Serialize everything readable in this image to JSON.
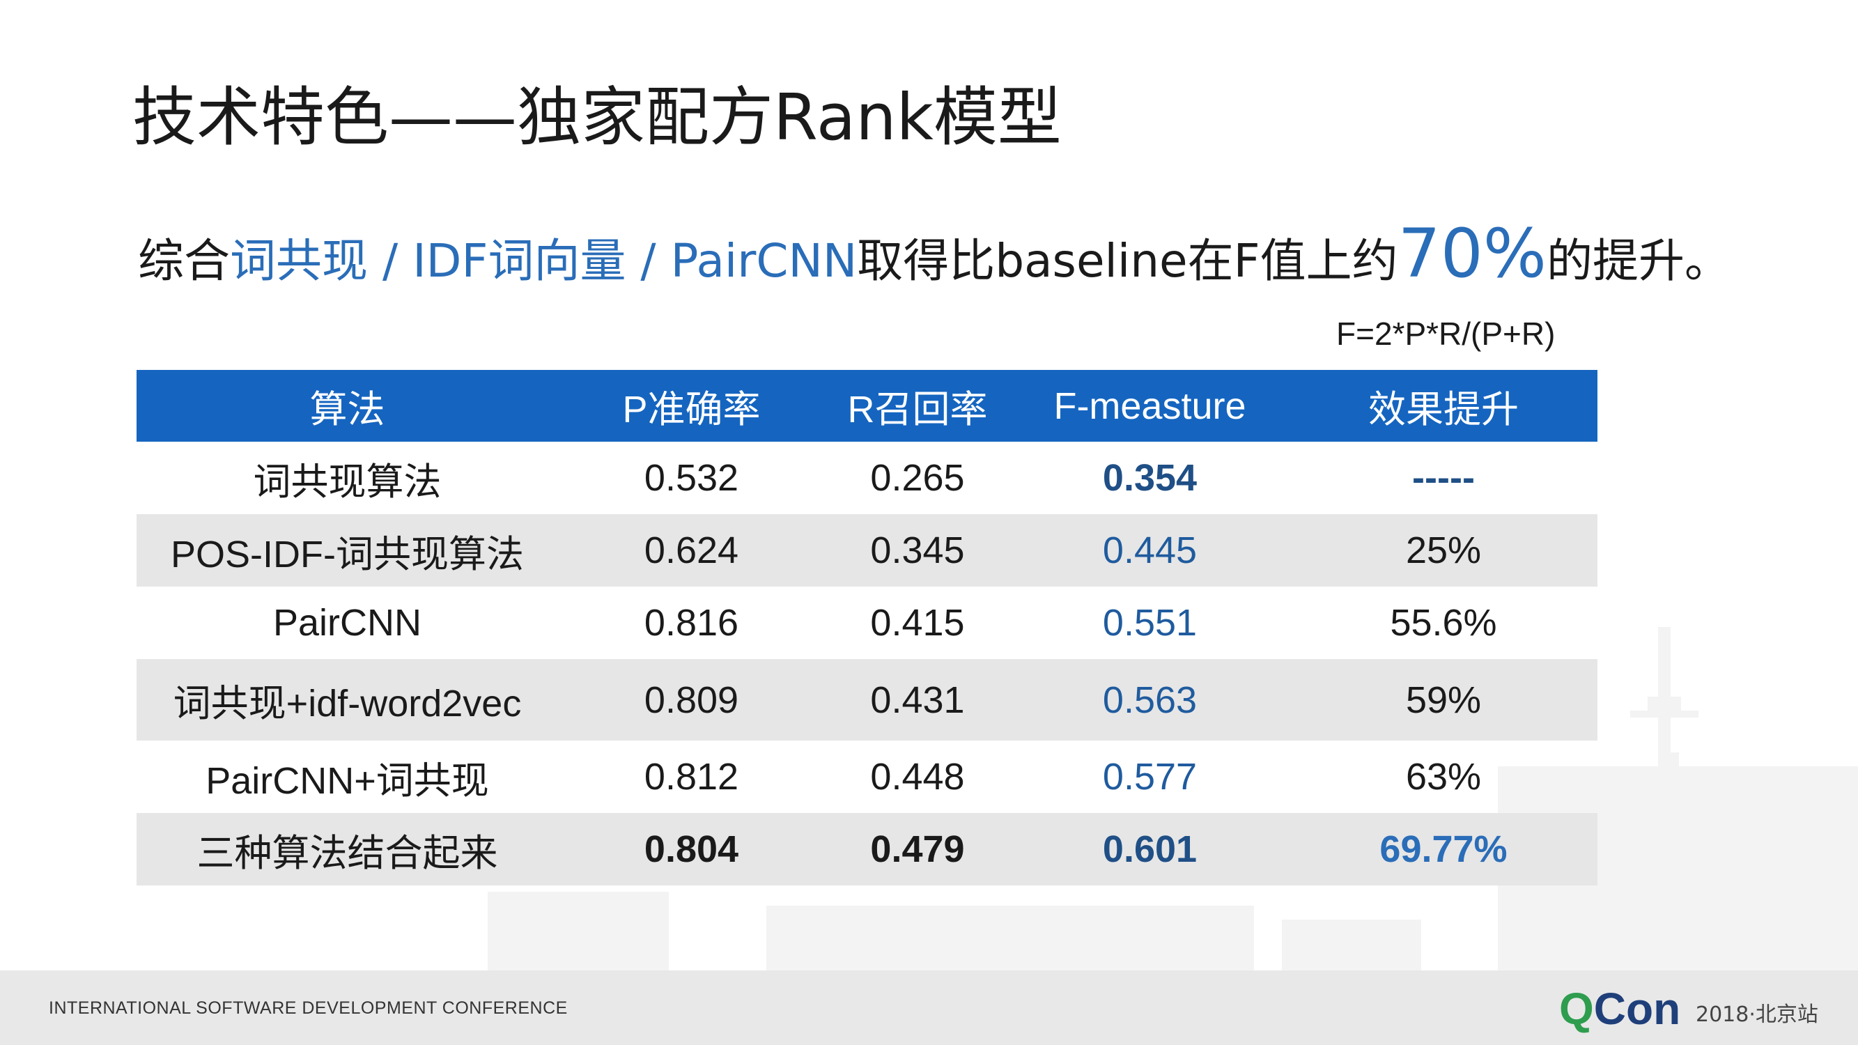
{
  "title": "技术特色——独家配方Rank模型",
  "subtitle": {
    "prefix": "综合",
    "methods": "词共现 / IDF词向量 / PairCNN",
    "middle": "取得比baseline在F值上约",
    "percent": "70%",
    "suffix": "的提升。"
  },
  "formula": "F=2*P*R/(P+R)",
  "table": {
    "headers": [
      "算法",
      "P准确率",
      "R召回率",
      "F-measture",
      "效果提升"
    ],
    "rows": [
      {
        "algo": "词共现算法",
        "p": "0.532",
        "r": "0.265",
        "f": "0.354",
        "gain": "-----"
      },
      {
        "algo": "POS-IDF-词共现算法",
        "p": "0.624",
        "r": "0.345",
        "f": "0.445",
        "gain": "25%"
      },
      {
        "algo": "PairCNN",
        "p": "0.816",
        "r": "0.415",
        "f": "0.551",
        "gain": "55.6%"
      },
      {
        "algo": "词共现+idf-word2vec",
        "p": "0.809",
        "r": "0.431",
        "f": "0.563",
        "gain": "59%"
      },
      {
        "algo": "PairCNN+词共现",
        "p": "0.812",
        "r": "0.448",
        "f": "0.577",
        "gain": "63%"
      },
      {
        "algo": "三种算法结合起来",
        "p": "0.804",
        "r": "0.479",
        "f": "0.601",
        "gain": "69.77%"
      }
    ]
  },
  "footer": {
    "conference": "INTERNATIONAL SOFTWARE DEVELOPMENT CONFERENCE",
    "logo_q": "Q",
    "logo_rest": "Con",
    "edition": "2018·北京站"
  },
  "colors": {
    "header_bg": "#1565c0",
    "accent_blue": "#2a6db8",
    "row_shade": "#e6e6e6",
    "logo_green": "#2e9d4e",
    "logo_navy": "#1f3f7a"
  }
}
